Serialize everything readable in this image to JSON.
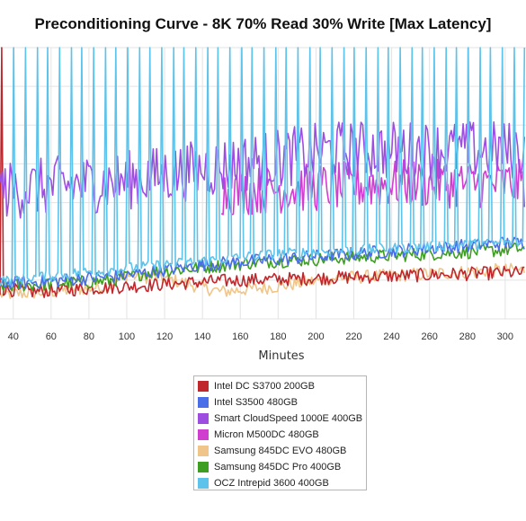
{
  "chart_data": {
    "type": "line",
    "title": "Preconditioning Curve - 8K 70% Read 30% Write [Max Latency]",
    "xlabel": "Minutes",
    "ylabel": "",
    "x_ticks": [
      40,
      60,
      80,
      100,
      120,
      140,
      160,
      180,
      200,
      220,
      240,
      260,
      280,
      300
    ],
    "xlim": [
      33,
      311
    ],
    "ylim": [
      0,
      100
    ],
    "y_scale_labels_visible": false,
    "grid": true,
    "legend_position": "bottom-center",
    "series": [
      {
        "name": "Intel DC S3700 200GB",
        "color": "#c0272d",
        "values": [
          [
            33,
            10
          ],
          [
            33.5,
            100
          ],
          [
            34,
            11
          ],
          [
            50,
            10
          ],
          [
            100,
            12
          ],
          [
            150,
            14
          ],
          [
            200,
            15
          ],
          [
            250,
            16
          ],
          [
            300,
            17
          ],
          [
            311,
            17
          ]
        ]
      },
      {
        "name": "Intel S3500 480GB",
        "color": "#4a6ee8",
        "values": [
          [
            33,
            13
          ],
          [
            60,
            14
          ],
          [
            100,
            16
          ],
          [
            140,
            20
          ],
          [
            180,
            22
          ],
          [
            220,
            24
          ],
          [
            260,
            26
          ],
          [
            300,
            28
          ],
          [
            311,
            28
          ]
        ]
      },
      {
        "name": "Smart CloudSpeed 1000E 400GB",
        "color": "#9d4ee0",
        "values": [
          [
            33,
            45
          ],
          [
            50,
            46
          ],
          [
            65,
            47
          ],
          [
            90,
            48
          ],
          [
            110,
            50
          ],
          [
            130,
            52
          ],
          [
            150,
            54
          ],
          [
            170,
            56
          ],
          [
            190,
            58
          ],
          [
            210,
            60
          ],
          [
            230,
            60
          ],
          [
            250,
            60
          ],
          [
            270,
            60
          ],
          [
            290,
            60
          ],
          [
            311,
            60
          ]
        ]
      },
      {
        "name": "Micron M500DC 480GB",
        "color": "#d03ed0",
        "values": [
          [
            150,
            45
          ],
          [
            180,
            46
          ],
          [
            210,
            47
          ],
          [
            240,
            48
          ],
          [
            270,
            48
          ],
          [
            300,
            48
          ],
          [
            311,
            48
          ]
        ]
      },
      {
        "name": "Samsung 845DC EVO 480GB",
        "color": "#f0c58a",
        "values": [
          [
            33,
            9
          ],
          [
            60,
            10
          ],
          [
            90,
            12
          ],
          [
            100,
            16
          ],
          [
            120,
            15
          ],
          [
            150,
            10
          ],
          [
            180,
            12
          ],
          [
            210,
            15
          ],
          [
            240,
            16
          ],
          [
            270,
            17
          ],
          [
            300,
            18
          ],
          [
            311,
            18
          ]
        ]
      },
      {
        "name": "Samsung 845DC Pro 400GB",
        "color": "#3e9e22",
        "values": [
          [
            33,
            12
          ],
          [
            60,
            13
          ],
          [
            90,
            14
          ],
          [
            110,
            17
          ],
          [
            140,
            19
          ],
          [
            170,
            21
          ],
          [
            200,
            22
          ],
          [
            230,
            23
          ],
          [
            260,
            24
          ],
          [
            290,
            25
          ],
          [
            311,
            26
          ]
        ]
      },
      {
        "name": "OCZ Intrepid 3600 400GB",
        "color": "#5ec3ea",
        "values": [
          [
            33,
            14
          ],
          [
            60,
            16
          ],
          [
            90,
            18
          ],
          [
            120,
            20
          ],
          [
            150,
            22
          ],
          [
            180,
            24
          ],
          [
            210,
            25
          ],
          [
            240,
            26
          ],
          [
            270,
            27
          ],
          [
            300,
            28
          ],
          [
            311,
            28
          ]
        ],
        "spike_peak": 100,
        "spike_interval_minutes": 6
      }
    ]
  }
}
